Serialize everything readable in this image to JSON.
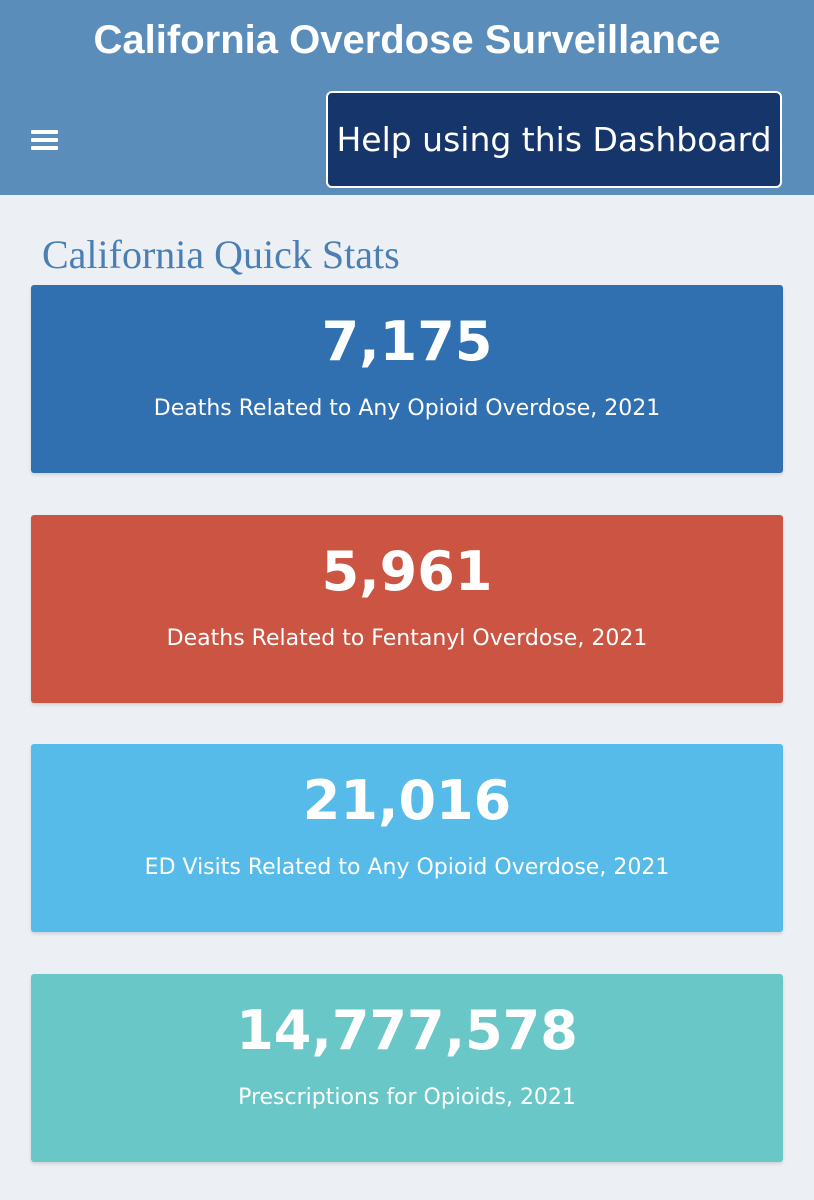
{
  "header": {
    "title": "California Overdose Surveillance",
    "menu_icon": "hamburger-menu-icon",
    "help_button_label": "Help using this Dashboard"
  },
  "colors": {
    "header_bg": "#5a8dba",
    "help_button_bg": "#16356a",
    "page_bg": "#ecf0f5",
    "section_title": "#4b7fb3"
  },
  "main": {
    "section_title": "California Quick Stats",
    "cards": [
      {
        "value": "7,175",
        "label": "Deaths Related to Any Opioid Overdose, 2021",
        "color": "#3070b0"
      },
      {
        "value": "5,961",
        "label": "Deaths Related to Fentanyl Overdose, 2021",
        "color": "#cb5442"
      },
      {
        "value": "21,016",
        "label": "ED Visits Related to Any Opioid Overdose, 2021",
        "color": "#56bbe9"
      },
      {
        "value": "14,777,578",
        "label": "Prescriptions for Opioids, 2021",
        "color": "#69c7c8"
      }
    ]
  }
}
